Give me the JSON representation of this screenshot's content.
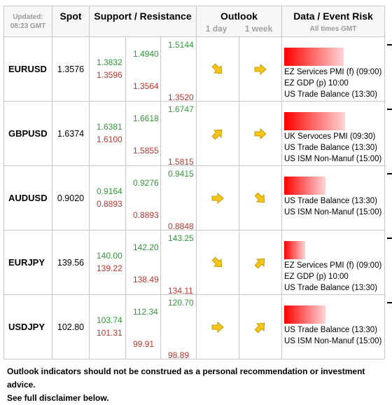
{
  "header": {
    "updated_label": "Updated:",
    "updated_time": "08:23 GMT",
    "spot": "Spot",
    "sr": "Support / Resistance",
    "outlook": "Outlook",
    "outlook_1d": "1 day",
    "outlook_1w": "1 week",
    "data_title": "Data / Event Risk",
    "data_sub": "All times GMT"
  },
  "rows": [
    {
      "pair": "EURUSD",
      "spot": "1.3576",
      "c1": [
        "1.3832",
        "1.3596"
      ],
      "c2": [
        "1.4940",
        "1.3564"
      ],
      "c3": [
        "1.5144",
        "1.3520"
      ],
      "outlook_1d": "arrow-down-right-icon",
      "outlook_1w": "arrow-right-icon",
      "risk": 0.6,
      "events": [
        "EZ Services PMI (f) (09:00)",
        "EZ GDP (p) 10:00",
        "US Trade Balance (13:30)"
      ]
    },
    {
      "pair": "GBPUSD",
      "spot": "1.6374",
      "c1": [
        "1.6381",
        "1.6100"
      ],
      "c2": [
        "1.6618",
        "1.5855"
      ],
      "c3": [
        "1.6747",
        "1.5815"
      ],
      "outlook_1d": "arrow-up-right-icon",
      "outlook_1w": "arrow-right-icon",
      "risk": 0.62,
      "events": [
        "UK Servoces PMI (09:30)",
        "US Trade Balance (13:30)",
        "US ISM Non-Manuf (15:00)"
      ]
    },
    {
      "pair": "AUDUSD",
      "spot": "0.9020",
      "c1": [
        "0.9164",
        "0.8893"
      ],
      "c2": [
        "0.9276",
        "0.8893"
      ],
      "c3": [
        "0.9415",
        "0.8848"
      ],
      "outlook_1d": "arrow-right-icon",
      "outlook_1w": "arrow-down-right-icon",
      "risk": 0.42,
      "events": [
        "US Trade Balance (13:30)",
        "US ISM Non-Manuf (15:00)"
      ]
    },
    {
      "pair": "EURJPY",
      "spot": "139.56",
      "c1": [
        "140.00",
        "139.22"
      ],
      "c2": [
        "142.20",
        "138.49"
      ],
      "c3": [
        "143.25",
        "134.11"
      ],
      "outlook_1d": "arrow-down-right-icon",
      "outlook_1w": "arrow-up-right-icon",
      "risk": 0.21,
      "events": [
        "EZ Services PMI (f) (09:00)",
        "EZ GDP (p) 10:00",
        "US Trade Balance (13:30)"
      ]
    },
    {
      "pair": "USDJPY",
      "spot": "102.80",
      "c1": [
        "103.74",
        "101.31"
      ],
      "c2": [
        "112.34",
        "99.91"
      ],
      "c3": [
        "120.70",
        "98.89"
      ],
      "outlook_1d": "arrow-right-icon",
      "outlook_1w": "arrow-up-right-icon",
      "risk": 0.42,
      "events": [
        "US Trade Balance (13:30)",
        "US ISM Non-Manuf (15:00)"
      ]
    }
  ],
  "footer": {
    "line1": "Outlook indicators should not be construed as a personal recommendation or investment advice.",
    "line2": "See full disclaimer below."
  },
  "colors": {
    "support": "#c0342c",
    "resistance": "#2e9b38",
    "risk_bar": "#ff0000",
    "arrow": "#f5c518"
  }
}
